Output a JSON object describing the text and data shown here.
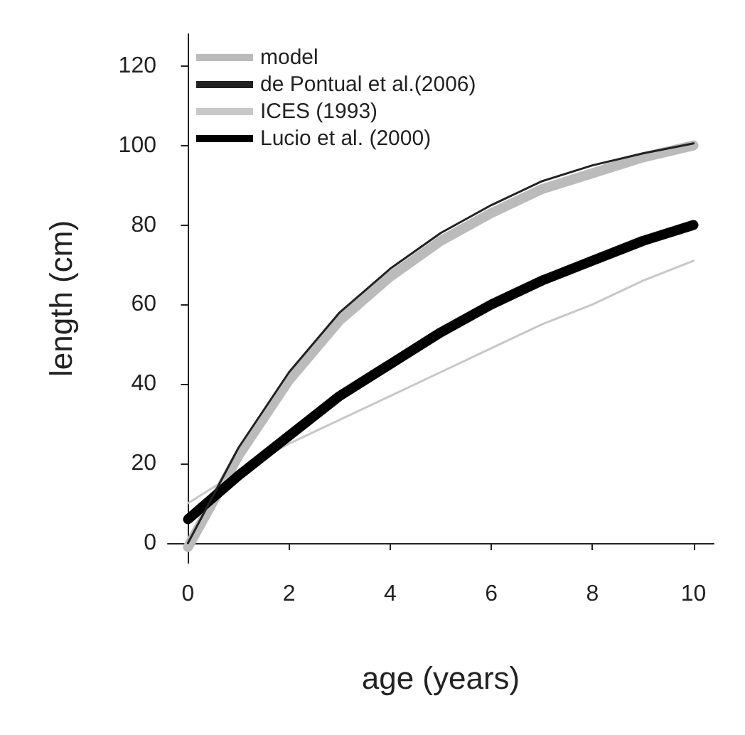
{
  "chart_data": {
    "type": "line",
    "xlabel": "age (years)",
    "ylabel": "length (cm)",
    "x": [
      0,
      1,
      2,
      3,
      4,
      5,
      6,
      7,
      8,
      9,
      10
    ],
    "series": [
      {
        "name": "model",
        "color": "#bbbbbb",
        "values": [
          -1,
          22,
          41,
          56,
          67,
          76,
          83,
          89,
          93,
          97,
          100
        ]
      },
      {
        "name": "de Pontual et al.(2006)",
        "color": "#222222",
        "values": [
          0,
          24,
          43,
          58,
          69,
          78,
          85,
          91,
          95,
          98,
          100.5
        ]
      },
      {
        "name": "ICES (1993)",
        "color": "#c8c8c8",
        "values": [
          10,
          18,
          25,
          31,
          37,
          43,
          49,
          55,
          60,
          66,
          71
        ]
      },
      {
        "name": "Lucio et al. (2000)",
        "color": "#000000",
        "values": [
          6,
          17,
          27,
          37,
          45,
          53,
          60,
          66,
          71,
          76,
          80
        ]
      }
    ],
    "xlim": [
      -0.4,
      10.4
    ],
    "xticks": [
      0,
      2,
      4,
      6,
      8,
      10
    ],
    "ylim": [
      -5,
      128
    ],
    "yticks": [
      0,
      20,
      40,
      60,
      80,
      100,
      120
    ],
    "grid": false,
    "legend": "top left",
    "marker": "none",
    "line_style": "solid"
  }
}
